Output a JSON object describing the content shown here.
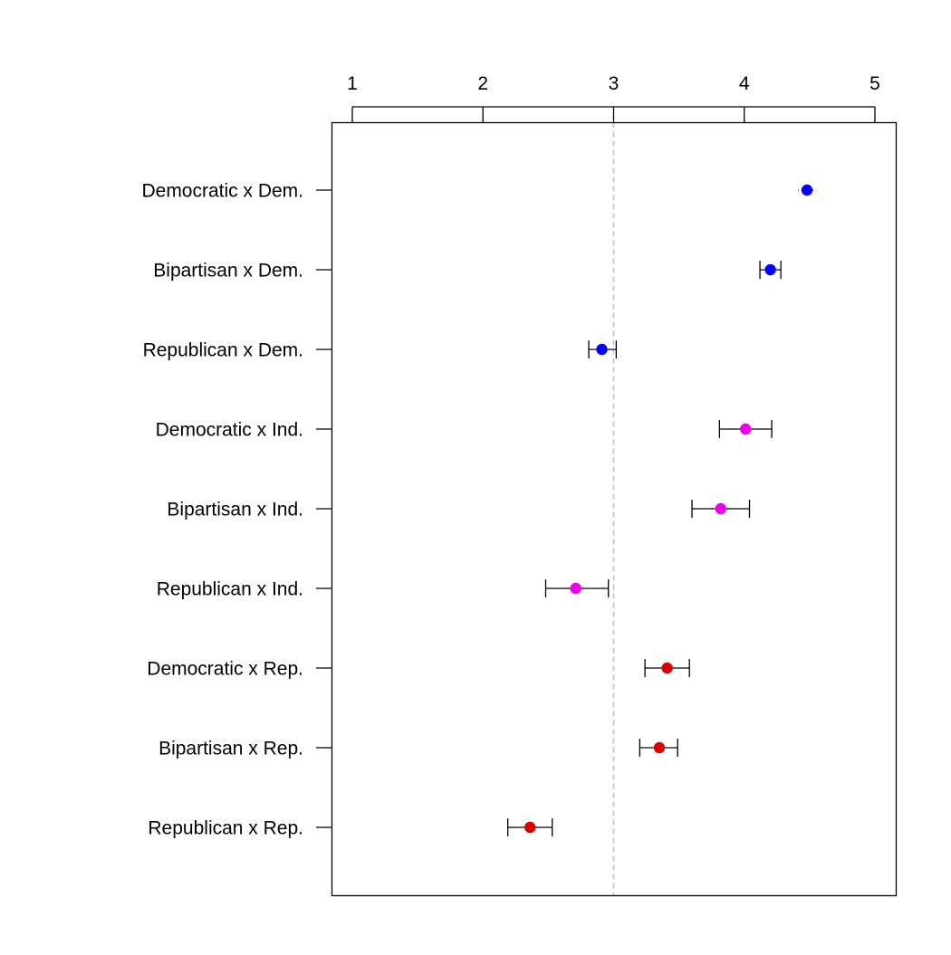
{
  "chart_data": {
    "type": "scatter",
    "subtype": "dot plot with confidence intervals",
    "orientation": "horizontal",
    "title": "",
    "xlabel": "",
    "ylabel": "",
    "xlim": [
      0.87,
      5.17
    ],
    "x_axis_position": "top",
    "x_ticks": [
      1,
      2,
      3,
      4,
      5
    ],
    "x_tick_labels": [
      "1",
      "2",
      "3",
      "4",
      "5"
    ],
    "reference_line": {
      "x": 3,
      "style": "dashed",
      "color": "#c0c0c0"
    },
    "grid": false,
    "legend": "none",
    "categories": [
      "Democratic x Dem.",
      "Bipartisan x Dem.",
      "Republican x Dem.",
      "Democratic x Ind.",
      "Bipartisan x Ind.",
      "Republican x Ind.",
      "Democratic x Rep.",
      "Bipartisan x Rep.",
      "Republican x Rep."
    ],
    "points": [
      {
        "label": "Democratic x Dem.",
        "value": 4.48,
        "lower": 4.41,
        "upper": 4.55,
        "color": "#0000ff"
      },
      {
        "label": "Bipartisan x Dem.",
        "value": 4.2,
        "lower": 4.12,
        "upper": 4.28,
        "color": "#0000ff"
      },
      {
        "label": "Republican x Dem.",
        "value": 2.91,
        "lower": 2.81,
        "upper": 3.02,
        "color": "#0000ff"
      },
      {
        "label": "Democratic x Ind.",
        "value": 4.01,
        "lower": 3.81,
        "upper": 4.21,
        "color": "#ee00ee"
      },
      {
        "label": "Bipartisan x Ind.",
        "value": 3.82,
        "lower": 3.6,
        "upper": 4.04,
        "color": "#ee00ee"
      },
      {
        "label": "Republican x Ind.",
        "value": 2.71,
        "lower": 2.48,
        "upper": 2.96,
        "color": "#ee00ee"
      },
      {
        "label": "Democratic x Rep.",
        "value": 3.41,
        "lower": 3.24,
        "upper": 3.58,
        "color": "#dd0000"
      },
      {
        "label": "Bipartisan x Rep.",
        "value": 3.35,
        "lower": 3.2,
        "upper": 3.49,
        "color": "#dd0000"
      },
      {
        "label": "Republican x Rep.",
        "value": 2.36,
        "lower": 2.19,
        "upper": 2.53,
        "color": "#dd0000"
      }
    ]
  }
}
